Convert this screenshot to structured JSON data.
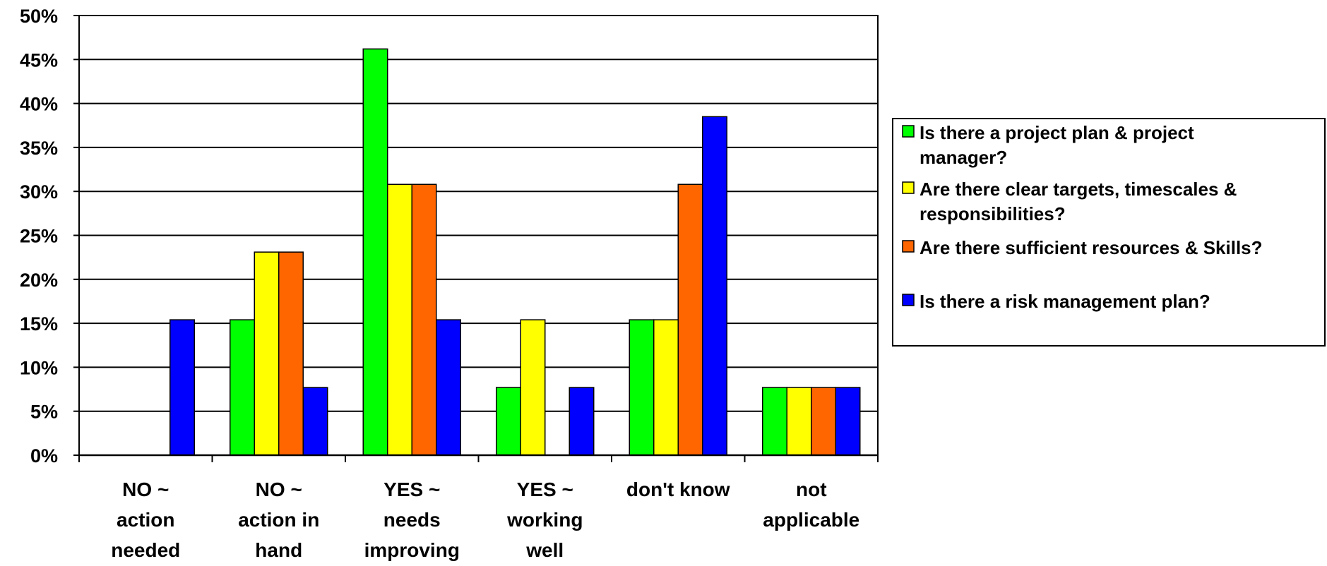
{
  "chart_data": {
    "type": "bar",
    "title": "",
    "xlabel": "",
    "ylabel": "",
    "ylim": [
      0,
      50
    ],
    "y_ticks": [
      "0%",
      "5%",
      "10%",
      "15%",
      "20%",
      "25%",
      "30%",
      "35%",
      "40%",
      "45%",
      "50%"
    ],
    "grid": "horizontal",
    "legend_position": "right",
    "categories": [
      [
        "NO ~",
        "action",
        "needed"
      ],
      [
        "NO ~",
        "action in",
        "hand"
      ],
      [
        "YES ~",
        "needs",
        "improving"
      ],
      [
        "YES ~",
        "working",
        "well"
      ],
      [
        "don't know"
      ],
      [
        "not",
        "applicable"
      ]
    ],
    "series": [
      {
        "name_lines": [
          "Is there a project plan & project",
          "manager?"
        ],
        "color": "#00ff00",
        "values": [
          0,
          15.4,
          46.2,
          7.7,
          15.4,
          7.7
        ]
      },
      {
        "name_lines": [
          "Are there clear targets, timescales &",
          "responsibilities?"
        ],
        "color": "#ffff00",
        "values": [
          0,
          23.1,
          30.8,
          15.4,
          15.4,
          7.7
        ]
      },
      {
        "name_lines": [
          "Are there sufficient resources & Skills?"
        ],
        "color": "#ff6600",
        "values": [
          0,
          23.1,
          30.8,
          0,
          30.8,
          7.7
        ]
      },
      {
        "name_lines": [
          "Is there a risk management plan?"
        ],
        "color": "#0000ff",
        "values": [
          15.4,
          7.7,
          15.4,
          7.7,
          38.5,
          7.7
        ]
      }
    ]
  }
}
